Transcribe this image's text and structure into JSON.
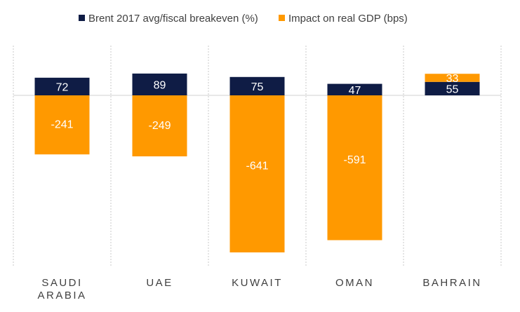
{
  "chart_data": {
    "type": "bar",
    "stacked": true,
    "categories": [
      [
        "SAUDI",
        "ARABIA"
      ],
      [
        "UAE"
      ],
      [
        "KUWAIT"
      ],
      [
        "OMAN"
      ],
      [
        "BAHRAIN"
      ]
    ],
    "series": [
      {
        "name": "Brent 2017 avg/fiscal breakeven (%)",
        "color": "#0f1c45",
        "values": [
          72,
          89,
          75,
          47,
          55
        ]
      },
      {
        "name": "Impact on real GDP (bps)",
        "color": "#ff9900",
        "values": [
          -241,
          -249,
          -641,
          -591,
          33
        ]
      }
    ],
    "ylim": [
      -700,
      200
    ],
    "grid": "vertical dotted separators",
    "legend": "top",
    "data_labels": true
  }
}
